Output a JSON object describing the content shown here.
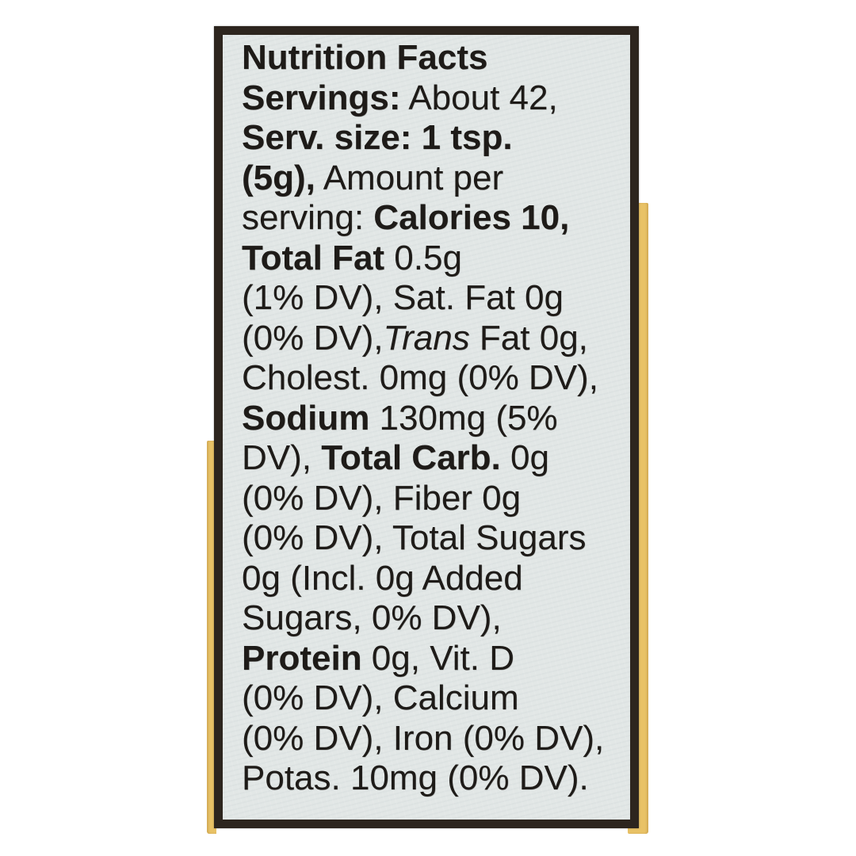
{
  "colors": {
    "photo_background": "#ffffff",
    "label_background": "#e2e7e6",
    "label_border": "#2d251e",
    "text_ink": "#1e1b18",
    "bottle_yellow": "#e9c266"
  },
  "label": {
    "lines": [
      {
        "segments": [
          {
            "t": "Nutrition Facts",
            "s": "b"
          }
        ]
      },
      {
        "segments": [
          {
            "t": "Servings:",
            "s": "b"
          },
          {
            "t": " About 42,",
            "s": "r"
          }
        ]
      },
      {
        "segments": [
          {
            "t": "Serv. size: 1 tsp.",
            "s": "b"
          }
        ]
      },
      {
        "segments": [
          {
            "t": "(5g),",
            "s": "b"
          },
          {
            "t": " Amount per",
            "s": "r"
          }
        ]
      },
      {
        "segments": [
          {
            "t": "serving: ",
            "s": "r"
          },
          {
            "t": "Calories 10,",
            "s": "b"
          }
        ]
      },
      {
        "segments": [
          {
            "t": "Total Fat",
            "s": "b"
          },
          {
            "t": " 0.5g",
            "s": "r"
          }
        ]
      },
      {
        "segments": [
          {
            "t": "(1% DV), Sat. Fat 0g",
            "s": "r"
          }
        ]
      },
      {
        "segments": [
          {
            "t": "(0% DV),",
            "s": "r"
          },
          {
            "t": "Trans",
            "s": "i"
          },
          {
            "t": " Fat 0g,",
            "s": "r"
          }
        ]
      },
      {
        "segments": [
          {
            "t": "Cholest. 0mg (0% DV),",
            "s": "r"
          }
        ]
      },
      {
        "segments": [
          {
            "t": "Sodium",
            "s": "b"
          },
          {
            "t": " 130mg (5%",
            "s": "r"
          }
        ]
      },
      {
        "segments": [
          {
            "t": "DV), ",
            "s": "r"
          },
          {
            "t": "Total Carb.",
            "s": "b"
          },
          {
            "t": " 0g",
            "s": "r"
          }
        ]
      },
      {
        "segments": [
          {
            "t": "(0% DV), Fiber 0g",
            "s": "r"
          }
        ]
      },
      {
        "segments": [
          {
            "t": "(0% DV), Total Sugars",
            "s": "r"
          }
        ]
      },
      {
        "segments": [
          {
            "t": "0g (Incl. 0g Added",
            "s": "r"
          }
        ]
      },
      {
        "segments": [
          {
            "t": "Sugars, 0% DV),",
            "s": "r"
          }
        ]
      },
      {
        "segments": [
          {
            "t": "Protein",
            "s": "b"
          },
          {
            "t": " 0g, Vit. D",
            "s": "r"
          }
        ]
      },
      {
        "segments": [
          {
            "t": "(0% DV), Calcium",
            "s": "r"
          }
        ]
      },
      {
        "segments": [
          {
            "t": "(0% DV), Iron (0% DV),",
            "s": "r"
          }
        ]
      },
      {
        "segments": [
          {
            "t": "Potas. 10mg (0% DV).",
            "s": "r"
          }
        ]
      }
    ]
  },
  "nutrition_facts": {
    "title": "Nutrition Facts",
    "servings": "About 42",
    "serving_size": "1 tsp. (5g)",
    "calories": "10",
    "total_fat": "0.5g (1% DV)",
    "saturated_fat": "0g (0% DV)",
    "trans_fat": "0g",
    "cholesterol": "0mg (0% DV)",
    "sodium": "130mg (5% DV)",
    "total_carbohydrate": "0g (0% DV)",
    "fiber": "0g (0% DV)",
    "total_sugars": "0g",
    "added_sugars": "0g (0% DV)",
    "protein": "0g",
    "vitamin_d": "0% DV",
    "calcium": "0% DV",
    "iron": "0% DV",
    "potassium": "10mg (0% DV)"
  }
}
